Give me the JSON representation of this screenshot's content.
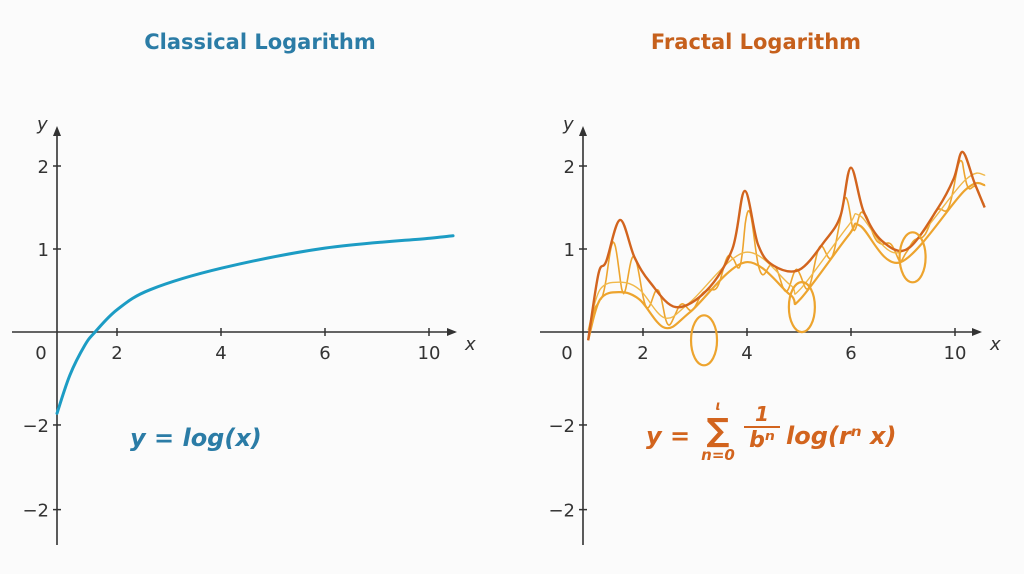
{
  "colors": {
    "left_title": "#2b7ca6",
    "left_curve": "#1c9cc4",
    "right_title": "#c6601c",
    "right_dark": "#d2641e",
    "right_light": "#eda42e",
    "axis": "#333333"
  },
  "chart_data": [
    {
      "type": "line",
      "title": "Classical Logarithm",
      "xlabel": "x",
      "ylabel": "y",
      "x_tick_labels": [
        "0",
        "2",
        "4",
        "6",
        "10"
      ],
      "y_tick_labels": [
        "2",
        "1",
        "−2",
        "−2"
      ],
      "annotation": "y = log(x)",
      "grid": false,
      "series": [
        {
          "x": [
            0,
            0.25,
            0.54,
            0.74,
            1.17,
            1.81,
            3.2,
            5.2,
            7.24,
            7.69
          ],
          "y": [
            -0.98,
            -0.52,
            -0.16,
            0,
            0.27,
            0.51,
            0.77,
            1.01,
            1.13,
            1.16
          ]
        }
      ]
    },
    {
      "type": "line",
      "title": "Fractal Logarithm",
      "xlabel": "x",
      "ylabel": "y",
      "x_tick_labels": [
        "0",
        "2",
        "4",
        "6",
        "10"
      ],
      "y_tick_labels": [
        "2",
        "1",
        "−2",
        "−2"
      ],
      "annotation": {
        "lhs": "y =",
        "sum": "∑",
        "sum_upper": "ι",
        "sum_lower": "n=0",
        "numerator": "1",
        "denominator": "bⁿ",
        "rhs": "log(rⁿ x)"
      },
      "grid": false,
      "series": [
        {
          "x": [
            0.1,
            0.33,
            0.72,
            1.1,
            1.59,
            2.08,
            3.15,
            4.02,
            4.21,
            5.15,
            5.38,
            6.16,
            7.42,
            7.81
          ],
          "y": [
            -0.1,
            0.39,
            0.48,
            0.39,
            0.05,
            0.24,
            0.84,
            0.45,
            0.39,
            1.16,
            1.28,
            0.84,
            1.71,
            1.77
          ]
        },
        {
          "x": [
            0.1,
            0.3,
            0.45,
            0.72,
            1.0,
            1.3,
            1.8,
            2.4,
            2.9,
            3.14,
            3.4,
            3.7,
            4.2,
            4.7,
            5.0,
            5.2,
            5.45,
            5.8,
            6.3,
            6.9,
            7.2,
            7.37,
            7.6,
            7.8
          ],
          "y": [
            -0.1,
            0.7,
            0.85,
            1.35,
            0.9,
            0.6,
            0.3,
            0.5,
            1.0,
            1.7,
            1.05,
            0.8,
            0.75,
            1.1,
            1.4,
            1.98,
            1.45,
            1.1,
            1.0,
            1.5,
            1.85,
            2.17,
            1.8,
            1.5
          ]
        }
      ],
      "loops": [
        {
          "x": 2.35,
          "y": -0.1
        },
        {
          "x": 4.25,
          "y": 0.3
        },
        {
          "x": 6.4,
          "y": 0.9
        }
      ]
    }
  ]
}
